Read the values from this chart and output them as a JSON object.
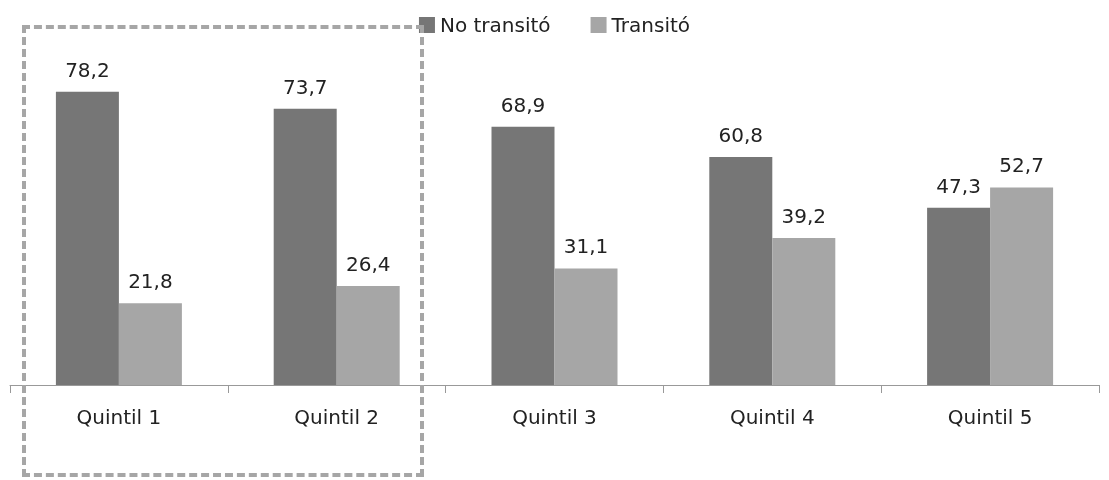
{
  "chart_data": {
    "type": "bar",
    "categories": [
      "Quintil 1",
      "Quintil 2",
      "Quintil 3",
      "Quintil 4",
      "Quintil 5"
    ],
    "series": [
      {
        "name": "No transitó",
        "color": "#767676",
        "values": [
          78.2,
          73.7,
          68.9,
          60.8,
          47.3
        ],
        "value_labels": [
          "78,2",
          "73,7",
          "68,9",
          "60,8",
          "47,3"
        ]
      },
      {
        "name": "Transitó",
        "color": "#a6a6a6",
        "values": [
          21.8,
          26.4,
          31.1,
          39.2,
          52.7
        ],
        "value_labels": [
          "21,8",
          "26,4",
          "31,1",
          "39,2",
          "52,7"
        ]
      }
    ],
    "legend": "top",
    "tick_labels": "x"
  }
}
